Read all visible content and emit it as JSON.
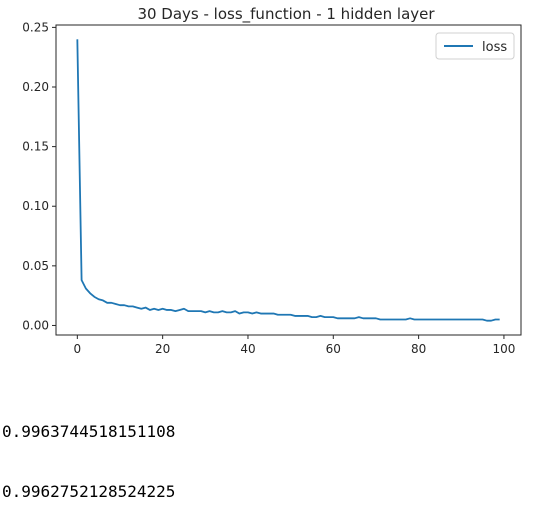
{
  "chart_data": {
    "type": "line",
    "title": "30 Days - loss_function - 1 hidden layer",
    "xlabel": "",
    "ylabel": "",
    "xlim": [
      -5,
      104
    ],
    "ylim": [
      -0.008,
      0.252
    ],
    "xticks": [
      0,
      20,
      40,
      60,
      80,
      100
    ],
    "xtick_labels": [
      "0",
      "20",
      "40",
      "60",
      "80",
      "100"
    ],
    "yticks": [
      0.0,
      0.05,
      0.1,
      0.15,
      0.2,
      0.25
    ],
    "ytick_labels": [
      "0.00",
      "0.05",
      "0.10",
      "0.15",
      "0.20",
      "0.25"
    ],
    "grid": false,
    "legend_position": "top-right",
    "series": [
      {
        "name": "loss",
        "color": "#1f77b4",
        "x": [
          0,
          1,
          2,
          3,
          4,
          5,
          6,
          7,
          8,
          9,
          10,
          11,
          12,
          13,
          14,
          15,
          16,
          17,
          18,
          19,
          20,
          21,
          22,
          23,
          24,
          25,
          26,
          27,
          28,
          29,
          30,
          31,
          32,
          33,
          34,
          35,
          36,
          37,
          38,
          39,
          40,
          41,
          42,
          43,
          44,
          45,
          46,
          47,
          48,
          49,
          50,
          51,
          52,
          53,
          54,
          55,
          56,
          57,
          58,
          59,
          60,
          61,
          62,
          63,
          64,
          65,
          66,
          67,
          68,
          69,
          70,
          71,
          72,
          73,
          74,
          75,
          76,
          77,
          78,
          79,
          80,
          81,
          82,
          83,
          84,
          85,
          86,
          87,
          88,
          89,
          90,
          91,
          92,
          93,
          94,
          95,
          96,
          97,
          98,
          99
        ],
        "values": [
          0.24,
          0.038,
          0.031,
          0.027,
          0.024,
          0.022,
          0.021,
          0.019,
          0.019,
          0.018,
          0.017,
          0.017,
          0.016,
          0.016,
          0.015,
          0.014,
          0.015,
          0.013,
          0.014,
          0.013,
          0.014,
          0.013,
          0.013,
          0.012,
          0.013,
          0.014,
          0.012,
          0.012,
          0.012,
          0.012,
          0.011,
          0.012,
          0.011,
          0.011,
          0.012,
          0.011,
          0.011,
          0.012,
          0.01,
          0.011,
          0.011,
          0.01,
          0.011,
          0.01,
          0.01,
          0.01,
          0.01,
          0.009,
          0.009,
          0.009,
          0.009,
          0.008,
          0.008,
          0.008,
          0.008,
          0.007,
          0.007,
          0.008,
          0.007,
          0.007,
          0.007,
          0.006,
          0.006,
          0.006,
          0.006,
          0.006,
          0.007,
          0.006,
          0.006,
          0.006,
          0.006,
          0.005,
          0.005,
          0.005,
          0.005,
          0.005,
          0.005,
          0.005,
          0.006,
          0.005,
          0.005,
          0.005,
          0.005,
          0.005,
          0.005,
          0.005,
          0.005,
          0.005,
          0.005,
          0.005,
          0.005,
          0.005,
          0.005,
          0.005,
          0.005,
          0.005,
          0.004,
          0.004,
          0.005,
          0.005
        ]
      }
    ]
  },
  "output_lines": [
    "0.9963744518151108",
    "0.9962752128524225"
  ]
}
